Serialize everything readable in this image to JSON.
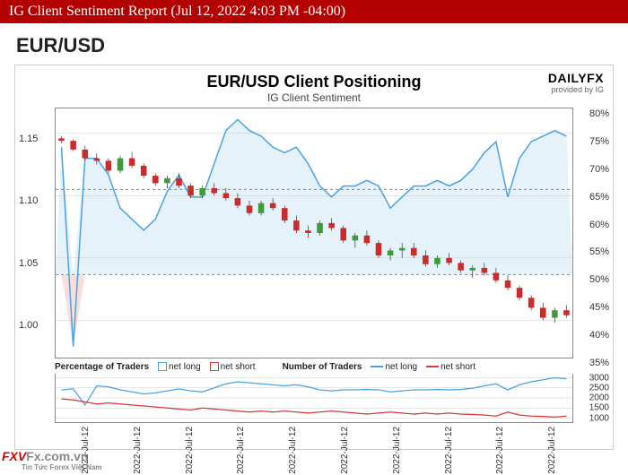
{
  "header": {
    "title": "IG Client Sentiment Report (Jul 12, 2022 4:03 PM -04:00)"
  },
  "pair": "EUR/USD",
  "chart": {
    "title": "EUR/USD Client Positioning",
    "subtitle": "IG Client Sentiment",
    "brand_main": "DAILYFX",
    "brand_sub": "provided by IG",
    "left_axis": {
      "min": 0.97,
      "max": 1.17,
      "ticks": [
        1.0,
        1.05,
        1.1,
        1.15
      ]
    },
    "right_axis": {
      "min": 35,
      "max": 80,
      "ticks": [
        35,
        40,
        45,
        50,
        55,
        60,
        65,
        70,
        75,
        80
      ],
      "suffix": "%"
    },
    "x_labels": [
      "2022-Jul-12",
      "2022-Jul-12",
      "2022-Jul-12",
      "2022-Jul-12",
      "2022-Jul-12",
      "2022-Jul-12",
      "2022-Jul-12",
      "2022-Jul-12",
      "2022-Jul-12",
      "2022-Jul-12"
    ],
    "bg_upper_color": "#f9dede",
    "bg_lower_color": "#e6f2fa",
    "grid_color": "#cccccc",
    "sentiment_line_color": "#4aa3df",
    "sentiment_fill_color": "#cfe8f7",
    "ref50_color": "#888888",
    "candle_up_color": "#3a9c3a",
    "candle_down_color": "#cc2b2b",
    "candle_wick_color": "#333333",
    "sentiment_series": [
      73,
      37,
      71,
      71,
      68,
      62,
      60,
      58,
      60,
      65,
      68,
      64,
      64,
      70,
      76,
      78,
      76,
      75,
      73,
      72,
      73,
      70,
      66,
      64,
      66,
      66,
      67,
      66,
      62,
      64,
      66,
      66,
      67,
      66,
      67,
      69,
      72,
      74,
      64,
      71,
      74,
      75,
      76,
      75
    ],
    "price_series": [
      {
        "o": 1.146,
        "h": 1.148,
        "l": 1.142,
        "c": 1.144
      },
      {
        "o": 1.144,
        "h": 1.145,
        "l": 1.136,
        "c": 1.137
      },
      {
        "o": 1.137,
        "h": 1.14,
        "l": 1.128,
        "c": 1.13
      },
      {
        "o": 1.13,
        "h": 1.134,
        "l": 1.125,
        "c": 1.128
      },
      {
        "o": 1.128,
        "h": 1.13,
        "l": 1.118,
        "c": 1.12
      },
      {
        "o": 1.12,
        "h": 1.132,
        "l": 1.118,
        "c": 1.13
      },
      {
        "o": 1.13,
        "h": 1.135,
        "l": 1.122,
        "c": 1.124
      },
      {
        "o": 1.124,
        "h": 1.126,
        "l": 1.114,
        "c": 1.116
      },
      {
        "o": 1.116,
        "h": 1.118,
        "l": 1.108,
        "c": 1.11
      },
      {
        "o": 1.11,
        "h": 1.116,
        "l": 1.106,
        "c": 1.114
      },
      {
        "o": 1.114,
        "h": 1.118,
        "l": 1.106,
        "c": 1.108
      },
      {
        "o": 1.108,
        "h": 1.11,
        "l": 1.098,
        "c": 1.1
      },
      {
        "o": 1.1,
        "h": 1.108,
        "l": 1.098,
        "c": 1.106
      },
      {
        "o": 1.106,
        "h": 1.11,
        "l": 1.1,
        "c": 1.102
      },
      {
        "o": 1.102,
        "h": 1.106,
        "l": 1.096,
        "c": 1.098
      },
      {
        "o": 1.098,
        "h": 1.102,
        "l": 1.09,
        "c": 1.092
      },
      {
        "o": 1.092,
        "h": 1.096,
        "l": 1.084,
        "c": 1.086
      },
      {
        "o": 1.086,
        "h": 1.096,
        "l": 1.084,
        "c": 1.094
      },
      {
        "o": 1.094,
        "h": 1.098,
        "l": 1.088,
        "c": 1.09
      },
      {
        "o": 1.09,
        "h": 1.092,
        "l": 1.078,
        "c": 1.08
      },
      {
        "o": 1.08,
        "h": 1.084,
        "l": 1.07,
        "c": 1.072
      },
      {
        "o": 1.072,
        "h": 1.076,
        "l": 1.066,
        "c": 1.07
      },
      {
        "o": 1.07,
        "h": 1.08,
        "l": 1.068,
        "c": 1.078
      },
      {
        "o": 1.078,
        "h": 1.082,
        "l": 1.072,
        "c": 1.074
      },
      {
        "o": 1.074,
        "h": 1.076,
        "l": 1.062,
        "c": 1.064
      },
      {
        "o": 1.064,
        "h": 1.07,
        "l": 1.058,
        "c": 1.068
      },
      {
        "o": 1.068,
        "h": 1.072,
        "l": 1.06,
        "c": 1.062
      },
      {
        "o": 1.062,
        "h": 1.064,
        "l": 1.05,
        "c": 1.052
      },
      {
        "o": 1.052,
        "h": 1.058,
        "l": 1.048,
        "c": 1.056
      },
      {
        "o": 1.056,
        "h": 1.062,
        "l": 1.05,
        "c": 1.058
      },
      {
        "o": 1.058,
        "h": 1.062,
        "l": 1.05,
        "c": 1.052
      },
      {
        "o": 1.052,
        "h": 1.056,
        "l": 1.043,
        "c": 1.045
      },
      {
        "o": 1.045,
        "h": 1.052,
        "l": 1.042,
        "c": 1.05
      },
      {
        "o": 1.05,
        "h": 1.054,
        "l": 1.044,
        "c": 1.046
      },
      {
        "o": 1.046,
        "h": 1.048,
        "l": 1.038,
        "c": 1.04
      },
      {
        "o": 1.04,
        "h": 1.044,
        "l": 1.034,
        "c": 1.042
      },
      {
        "o": 1.042,
        "h": 1.046,
        "l": 1.036,
        "c": 1.038
      },
      {
        "o": 1.038,
        "h": 1.042,
        "l": 1.03,
        "c": 1.032
      },
      {
        "o": 1.032,
        "h": 1.036,
        "l": 1.024,
        "c": 1.026
      },
      {
        "o": 1.026,
        "h": 1.028,
        "l": 1.016,
        "c": 1.018
      },
      {
        "o": 1.018,
        "h": 1.02,
        "l": 1.008,
        "c": 1.01
      },
      {
        "o": 1.01,
        "h": 1.014,
        "l": 1.0,
        "c": 1.002
      },
      {
        "o": 1.002,
        "h": 1.01,
        "l": 0.998,
        "c": 1.008
      },
      {
        "o": 1.008,
        "h": 1.012,
        "l": 1.002,
        "c": 1.004
      }
    ]
  },
  "legend": {
    "pct_label": "Percentage of Traders",
    "num_label": "Number of Traders",
    "net_long": "net long",
    "net_short": "net short",
    "long_color": "#4aa3df",
    "short_color": "#d43a3a"
  },
  "subchart": {
    "yaxis": {
      "min": 800,
      "max": 3200,
      "ticks": [
        1000,
        1500,
        2000,
        2500,
        3000
      ]
    },
    "long_series": [
      2400,
      2450,
      1650,
      2600,
      2550,
      2400,
      2300,
      2200,
      2250,
      2350,
      2450,
      2350,
      2300,
      2500,
      2700,
      2800,
      2750,
      2700,
      2650,
      2600,
      2650,
      2550,
      2400,
      2350,
      2400,
      2400,
      2420,
      2400,
      2300,
      2350,
      2400,
      2400,
      2420,
      2400,
      2420,
      2480,
      2600,
      2700,
      2400,
      2650,
      2800,
      2900,
      3000,
      2950
    ],
    "short_series": [
      1950,
      1900,
      1800,
      1700,
      1750,
      1700,
      1650,
      1600,
      1550,
      1500,
      1450,
      1400,
      1500,
      1450,
      1400,
      1350,
      1300,
      1350,
      1300,
      1350,
      1300,
      1250,
      1300,
      1350,
      1300,
      1250,
      1200,
      1250,
      1300,
      1250,
      1200,
      1250,
      1200,
      1250,
      1200,
      1180,
      1150,
      1100,
      1300,
      1150,
      1100,
      1080,
      1050,
      1100
    ],
    "long_color": "#4aa3df",
    "short_color": "#d43a3a"
  },
  "watermark": {
    "brand1": "FXV",
    "brand2": "Fx.com.vn",
    "sub": "Tin Tức Forex Việt Nam"
  }
}
